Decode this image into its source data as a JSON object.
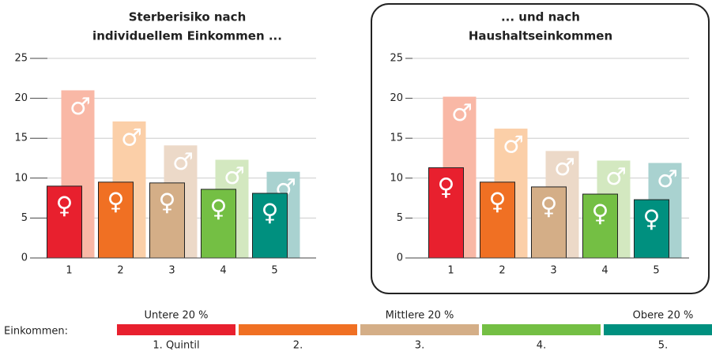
{
  "chart_data": [
    {
      "type": "bar",
      "title": [
        "Sterberisiko nach",
        "individuellem Einkommen ..."
      ],
      "categories": [
        "1",
        "2",
        "3",
        "4",
        "5"
      ],
      "ylim": [
        0,
        25
      ],
      "yticks": [
        0,
        5,
        10,
        15,
        20,
        25
      ],
      "grid": true,
      "series": [
        {
          "name": "♂",
          "colors": [
            "#f9b8a6",
            "#fbcfa8",
            "#ecd9c8",
            "#d3e8c0",
            "#a9d2d0"
          ],
          "values": [
            21,
            17.1,
            14.1,
            12.3,
            10.8
          ]
        },
        {
          "name": "♀",
          "colors": [
            "#e8202e",
            "#f07023",
            "#d4ae87",
            "#74bf44",
            "#00907f"
          ],
          "values": [
            9,
            9.5,
            9.4,
            8.6,
            8.1
          ]
        }
      ]
    },
    {
      "type": "bar",
      "title": [
        "... und nach",
        "Haushaltseinkommen"
      ],
      "categories": [
        "1",
        "2",
        "3",
        "4",
        "5"
      ],
      "ylim": [
        0,
        25
      ],
      "yticks": [
        0,
        5,
        10,
        15,
        20,
        25
      ],
      "grid": true,
      "series": [
        {
          "name": "♂",
          "colors": [
            "#f9b8a6",
            "#fbcfa8",
            "#ecd9c8",
            "#d3e8c0",
            "#a9d2d0"
          ],
          "values": [
            20.2,
            16.2,
            13.4,
            12.2,
            11.9
          ]
        },
        {
          "name": "♀",
          "colors": [
            "#e8202e",
            "#f07023",
            "#d4ae87",
            "#74bf44",
            "#00907f"
          ],
          "values": [
            11.3,
            9.5,
            8.9,
            8,
            7.3
          ]
        }
      ]
    }
  ],
  "legend": {
    "label": "Einkommen:",
    "top_labels": [
      "Untere 20 %",
      "Mittlere 20 %",
      "Obere 20 %"
    ],
    "quintiles": [
      "1. Quintil",
      "2.",
      "3.",
      "4.",
      "5."
    ]
  }
}
